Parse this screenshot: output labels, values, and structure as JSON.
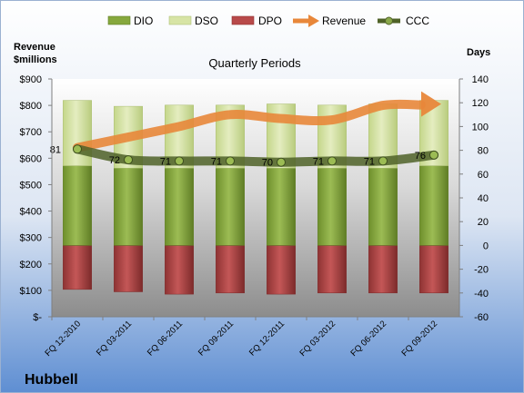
{
  "chart_data": {
    "type": "bar",
    "subtitle": "Quarterly Periods",
    "company": "Hubbell",
    "left_axis_label_line1": "Revenue",
    "left_axis_label_line2": "$millions",
    "right_axis_label": "Days",
    "categories": [
      "FQ 12-2010",
      "FQ 03-2011",
      "FQ 06-2011",
      "FQ 09-2011",
      "FQ 12-2011",
      "FQ 03-2012",
      "FQ 06-2012",
      "FQ 09-2012"
    ],
    "left_axis": {
      "min": 0,
      "max": 900,
      "step": 100,
      "tick_labels": [
        "$-",
        "$100",
        "$200",
        "$300",
        "$400",
        "$500",
        "$600",
        "$700",
        "$800",
        "$900"
      ]
    },
    "right_axis": {
      "min": -60,
      "max": 140,
      "step": 20,
      "tick_labels": [
        "-60",
        "-40",
        "-20",
        "0",
        "20",
        "40",
        "60",
        "80",
        "100",
        "120",
        "140"
      ]
    },
    "series": [
      {
        "name": "DIO",
        "axis": "right",
        "kind": "stacked-bar",
        "color": "#86a83d",
        "values": [
          67,
          65,
          65,
          65,
          65,
          65,
          65,
          67
        ]
      },
      {
        "name": "DSO",
        "axis": "right",
        "kind": "stacked-bar",
        "color": "#d7e4a5",
        "values": [
          55,
          52,
          53,
          53,
          54,
          53,
          54,
          55
        ]
      },
      {
        "name": "DPO",
        "axis": "right",
        "kind": "stacked-bar-negative",
        "color": "#b84a4a",
        "values": [
          -37,
          -39,
          -41,
          -40,
          -41,
          -40,
          -40,
          -40
        ]
      },
      {
        "name": "Revenue",
        "axis": "left",
        "kind": "arrow-line",
        "color": "#e8873a",
        "values": [
          640,
          680,
          720,
          765,
          750,
          745,
          800,
          805
        ]
      },
      {
        "name": "CCC",
        "axis": "right",
        "kind": "line",
        "color": "#4f6228",
        "values": [
          81,
          72,
          71,
          71,
          70,
          71,
          71,
          76
        ]
      }
    ],
    "ccc_labels": [
      "81",
      "72",
      "71",
      "71",
      "70",
      "71",
      "71",
      "76"
    ],
    "legend": [
      "DIO",
      "DSO",
      "DPO",
      "Revenue",
      "CCC"
    ],
    "legend_position": "top",
    "grid": false
  }
}
